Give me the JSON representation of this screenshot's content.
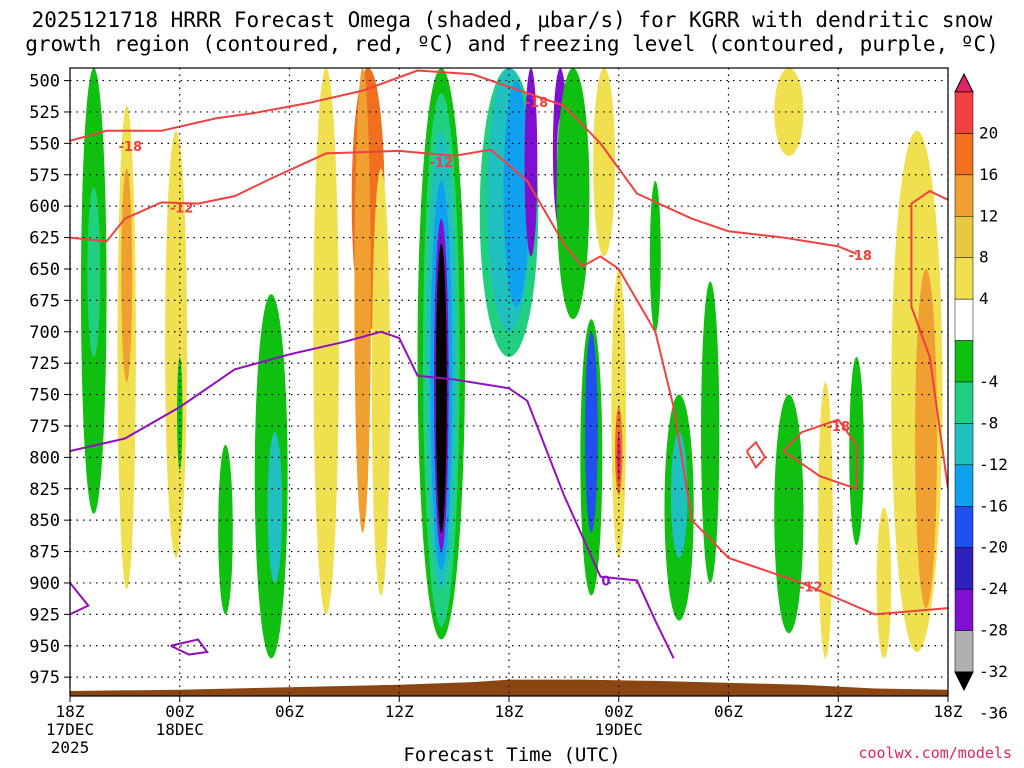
{
  "title_line1": "2025121718 HRRR Forecast Omega (shaded, μbar/s) for KGRR with dendritic snow",
  "title_line2": "growth region (contoured, red, ºC) and freezing level (contoured, purple, ºC)",
  "xlabel": "Forecast Time (UTC)",
  "credit": "coolwx.com/models",
  "chart_data": {
    "type": "heatmap",
    "title": "2025121718 HRRR Forecast Omega (shaded, μbar/s) for KGRR with dendritic snow growth region (contoured, red, ºC) and freezing level (contoured, purple, ºC)",
    "xlabel": "Forecast Time (UTC)",
    "ylabel": "",
    "y_ticks": [
      500,
      525,
      550,
      575,
      600,
      625,
      650,
      675,
      700,
      725,
      750,
      775,
      800,
      825,
      850,
      875,
      900,
      925,
      950,
      975
    ],
    "ylim": [
      490,
      990
    ],
    "y_reversed": true,
    "x_ticks": [
      {
        "hour": 0,
        "label": "18Z",
        "sub1": "17DEC",
        "sub2": "2025"
      },
      {
        "hour": 6,
        "label": "00Z",
        "sub1": "18DEC",
        "sub2": ""
      },
      {
        "hour": 12,
        "label": "06Z",
        "sub1": "",
        "sub2": ""
      },
      {
        "hour": 18,
        "label": "12Z",
        "sub1": "",
        "sub2": ""
      },
      {
        "hour": 24,
        "label": "18Z",
        "sub1": "",
        "sub2": ""
      },
      {
        "hour": 30,
        "label": "00Z",
        "sub1": "19DEC",
        "sub2": ""
      },
      {
        "hour": 36,
        "label": "06Z",
        "sub1": "",
        "sub2": ""
      },
      {
        "hour": 42,
        "label": "12Z",
        "sub1": "",
        "sub2": ""
      },
      {
        "hour": 48,
        "label": "18Z",
        "sub1": "",
        "sub2": ""
      }
    ],
    "xlim": [
      0,
      48
    ],
    "colorbar": {
      "labels": [
        "20",
        "16",
        "12",
        "8",
        "4",
        "-4",
        "-8",
        "-12",
        "-16",
        "-20",
        "-24",
        "-28",
        "-32",
        "-36"
      ],
      "colors": [
        "#e0245e",
        "#f04040",
        "#f07020",
        "#f0a030",
        "#e8c840",
        "#f0e050",
        "#ffffff",
        "#10c010",
        "#20d080",
        "#20c0c0",
        "#10a0f0",
        "#2050f0",
        "#3020c0",
        "#8010d0",
        "#b0b0b0",
        "#000000"
      ]
    },
    "contour_labels": [
      {
        "text": "-18",
        "color": "#f04040"
      },
      {
        "text": "-12",
        "color": "#f04040"
      },
      {
        "text": "-12",
        "color": "#f04040"
      },
      {
        "text": "-18",
        "color": "#f04040"
      },
      {
        "text": "-18",
        "color": "#f04040"
      },
      {
        "text": "-18",
        "color": "#f04040"
      },
      {
        "text": "-12",
        "color": "#f04040"
      },
      {
        "text": "0",
        "color": "#9010c0"
      }
    ]
  }
}
